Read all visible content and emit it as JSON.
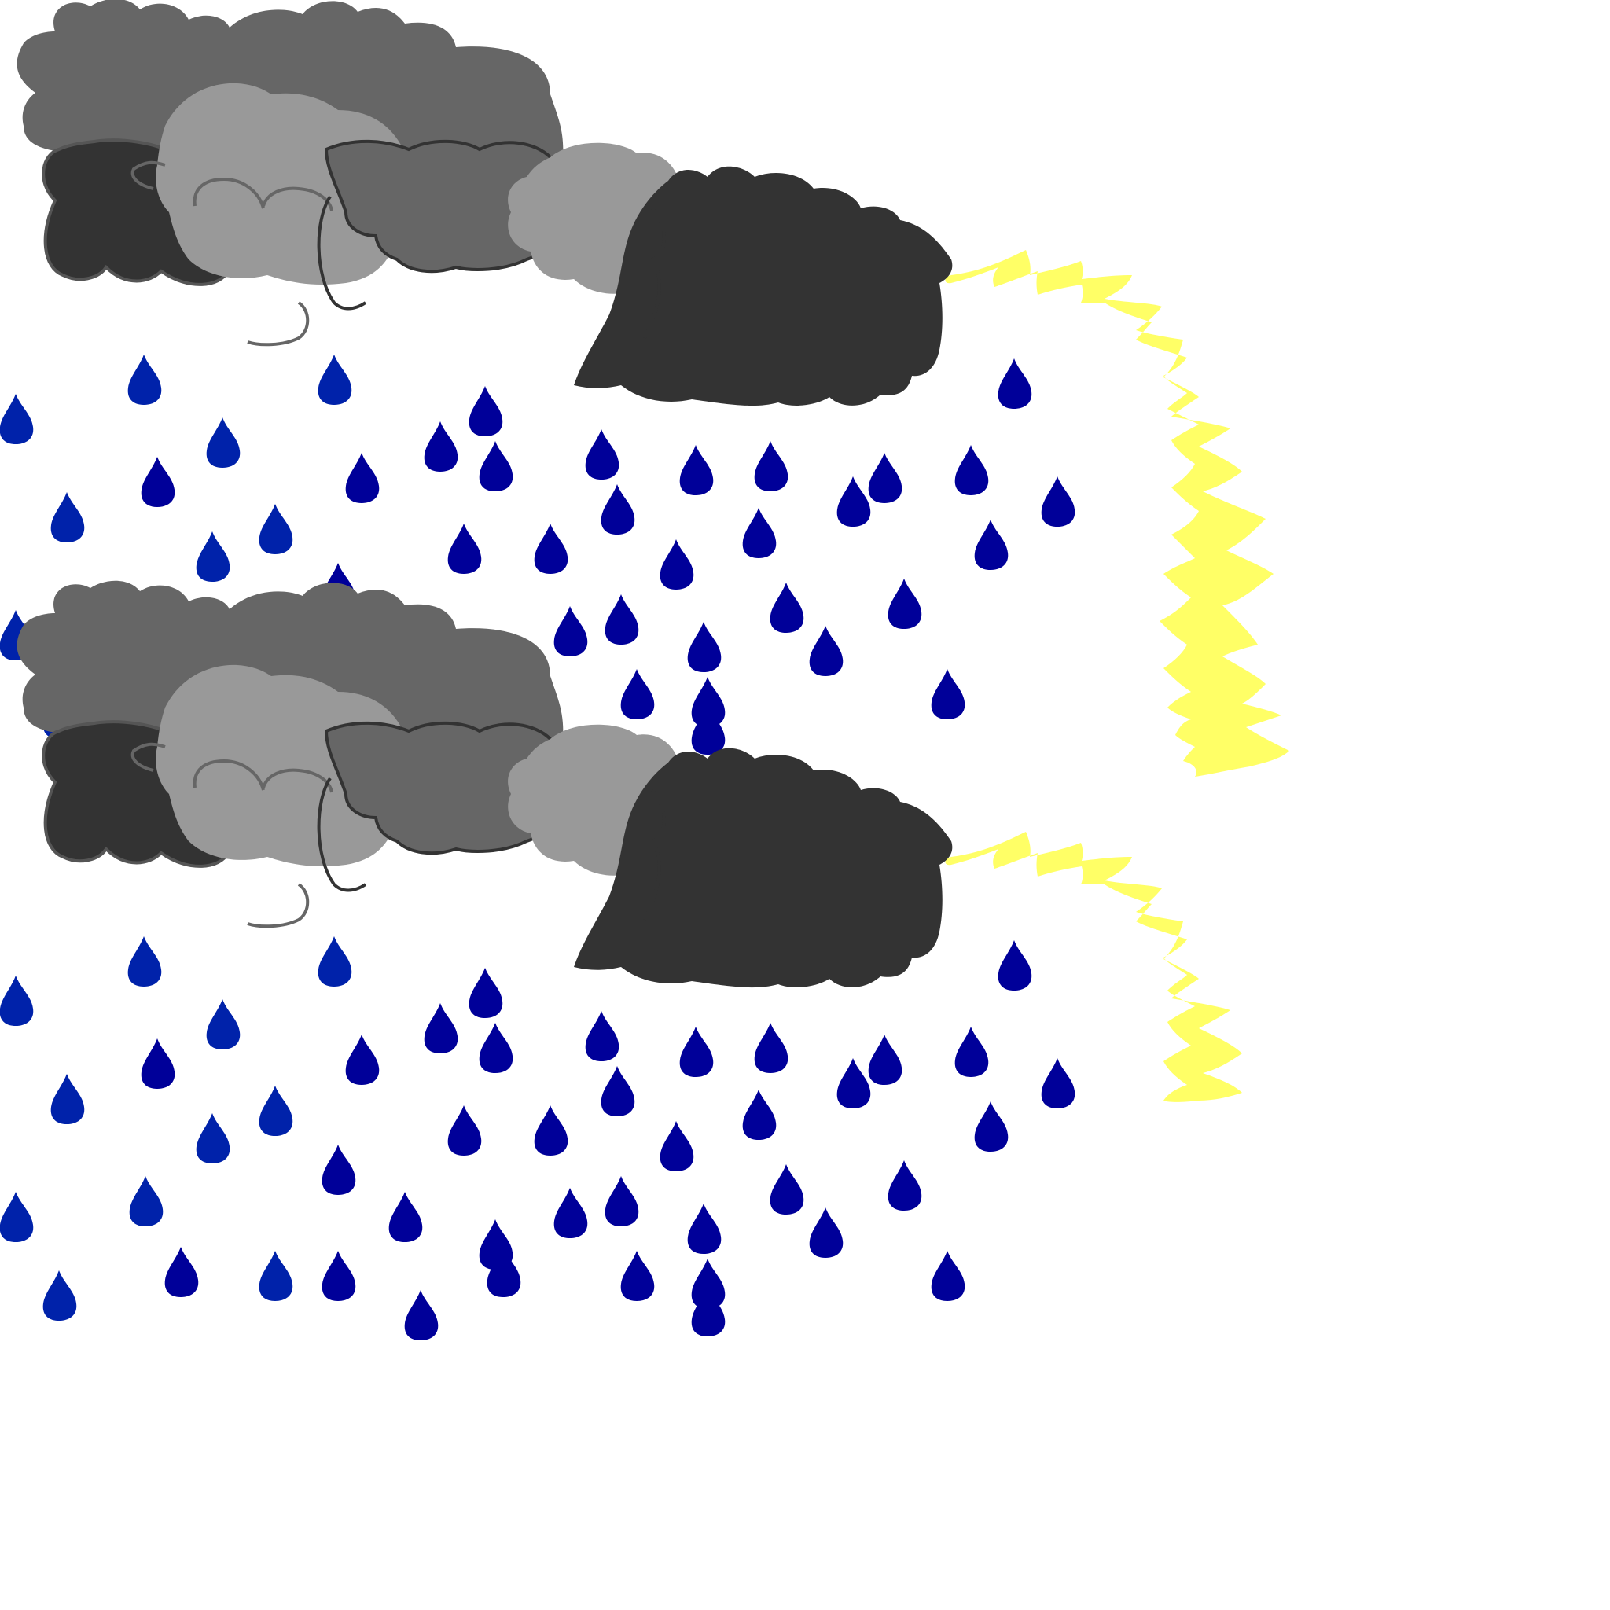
{
  "scene": {
    "description_icon": "storm-clouds-with-rain-and-lightning",
    "colors": {
      "background": "#ffffff",
      "cloud_back": "#666666",
      "cloud_dark": "#333333",
      "cloud_light": "#999999",
      "cloud_outline": "#333333",
      "raindrop": "#000099",
      "raindrop_outline": "#0033cc",
      "lightning": "#ffff66"
    },
    "panels": [
      {
        "name": "storm-panel-top",
        "has_lightning": true,
        "lightning_length": "long"
      },
      {
        "name": "storm-panel-bottom",
        "has_lightning": true,
        "lightning_length": "short"
      }
    ]
  }
}
